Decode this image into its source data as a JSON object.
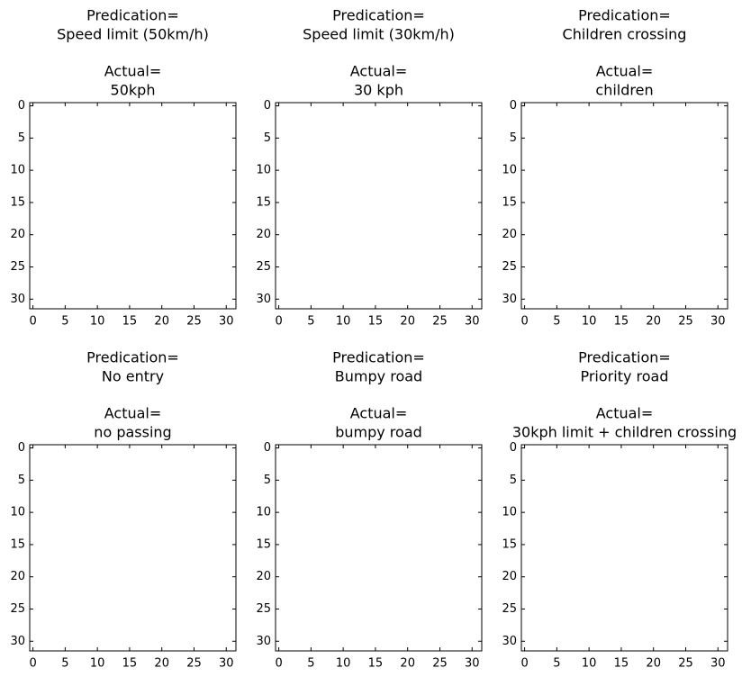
{
  "chart_data": [
    {
      "type": "image",
      "prediction_label": "Predication=",
      "prediction": "Speed limit (50km/h)",
      "actual_label": "Actual=",
      "actual": "50kph",
      "xlim": [
        -0.5,
        31.5
      ],
      "ylim": [
        31.5,
        -0.5
      ],
      "xticks": [
        0,
        5,
        10,
        15,
        20,
        25,
        30
      ],
      "yticks": [
        0,
        5,
        10,
        15,
        20,
        25,
        30
      ]
    },
    {
      "type": "image",
      "prediction_label": "Predication=",
      "prediction": "Speed limit (30km/h)",
      "actual_label": "Actual=",
      "actual": "30 kph",
      "xlim": [
        -0.5,
        31.5
      ],
      "ylim": [
        31.5,
        -0.5
      ],
      "xticks": [
        0,
        5,
        10,
        15,
        20,
        25,
        30
      ],
      "yticks": [
        0,
        5,
        10,
        15,
        20,
        25,
        30
      ]
    },
    {
      "type": "image",
      "prediction_label": "Predication=",
      "prediction": "Children crossing",
      "actual_label": "Actual=",
      "actual": "children",
      "xlim": [
        -0.5,
        31.5
      ],
      "ylim": [
        31.5,
        -0.5
      ],
      "xticks": [
        0,
        5,
        10,
        15,
        20,
        25,
        30
      ],
      "yticks": [
        0,
        5,
        10,
        15,
        20,
        25,
        30
      ]
    },
    {
      "type": "image",
      "prediction_label": "Predication=",
      "prediction": "No entry",
      "actual_label": "Actual=",
      "actual": "no passing",
      "xlim": [
        -0.5,
        31.5
      ],
      "ylim": [
        31.5,
        -0.5
      ],
      "xticks": [
        0,
        5,
        10,
        15,
        20,
        25,
        30
      ],
      "yticks": [
        0,
        5,
        10,
        15,
        20,
        25,
        30
      ]
    },
    {
      "type": "image",
      "prediction_label": "Predication=",
      "prediction": "Bumpy road",
      "actual_label": "Actual=",
      "actual": "bumpy road",
      "xlim": [
        -0.5,
        31.5
      ],
      "ylim": [
        31.5,
        -0.5
      ],
      "xticks": [
        0,
        5,
        10,
        15,
        20,
        25,
        30
      ],
      "yticks": [
        0,
        5,
        10,
        15,
        20,
        25,
        30
      ]
    },
    {
      "type": "image",
      "prediction_label": "Predication=",
      "prediction": "Priority road",
      "actual_label": "Actual=",
      "actual": "30kph limit + children crossing",
      "xlim": [
        -0.5,
        31.5
      ],
      "ylim": [
        31.5,
        -0.5
      ],
      "xticks": [
        0,
        5,
        10,
        15,
        20,
        25,
        30
      ],
      "yticks": [
        0,
        5,
        10,
        15,
        20,
        25,
        30
      ]
    }
  ]
}
